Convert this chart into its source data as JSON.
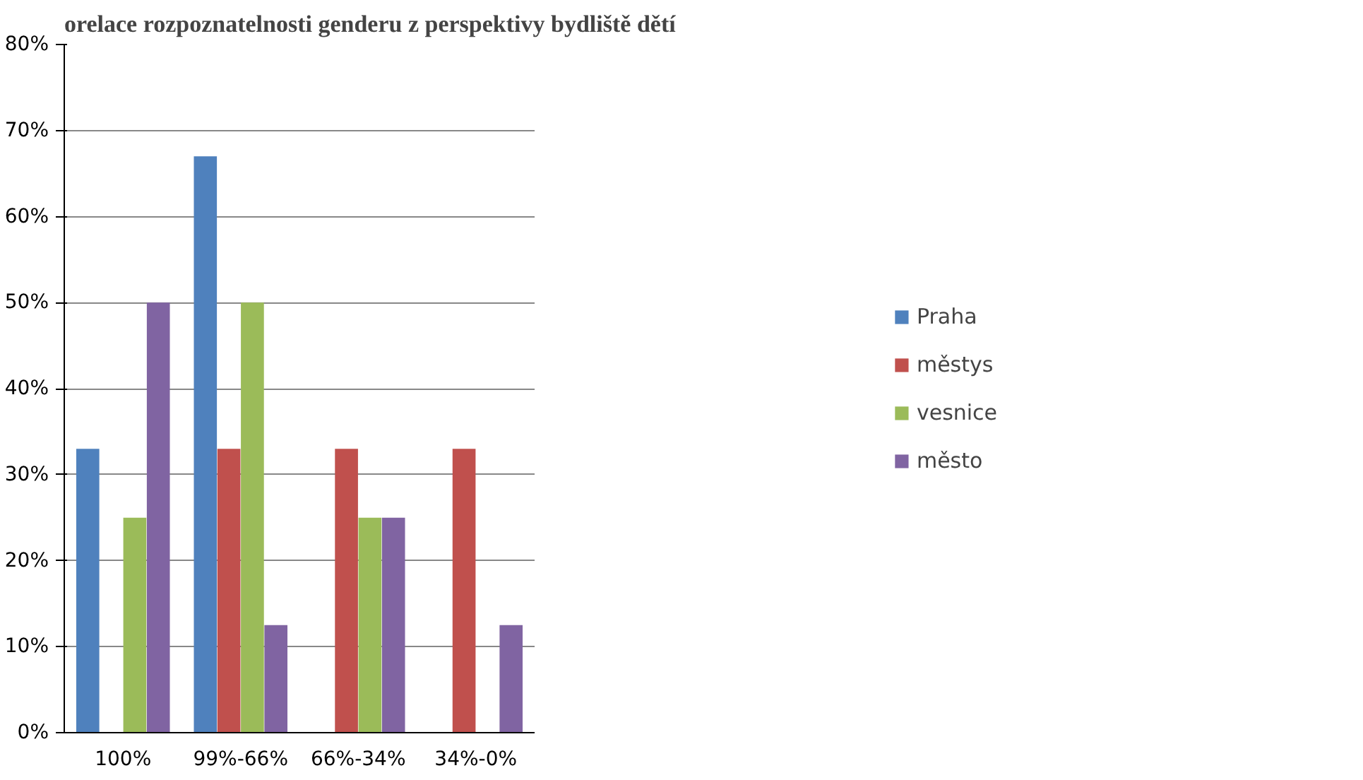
{
  "chart_data": {
    "type": "bar",
    "title": "orelace rozpoznatelnosti genderu z perspektivy bydliště dětí",
    "categories": [
      "100%",
      "99%-66%",
      "66%-34%",
      "34%-0%"
    ],
    "series": [
      {
        "name": "Praha",
        "color": "#4f81bd",
        "values": [
          33,
          67,
          0,
          0
        ]
      },
      {
        "name": "městys",
        "color": "#c0504d",
        "values": [
          0,
          33,
          33,
          33
        ]
      },
      {
        "name": "vesnice",
        "color": "#9bbb59",
        "values": [
          25,
          50,
          25,
          0
        ]
      },
      {
        "name": "město",
        "color": "#8064a2",
        "values": [
          50,
          12.5,
          25,
          12.5
        ]
      }
    ],
    "ylim": [
      0,
      80
    ],
    "yticks": [
      {
        "value": 0,
        "label": "0%"
      },
      {
        "value": 10,
        "label": "10%"
      },
      {
        "value": 20,
        "label": "20%"
      },
      {
        "value": 30,
        "label": "30%"
      },
      {
        "value": 40,
        "label": "40%"
      },
      {
        "value": 50,
        "label": "50%"
      },
      {
        "value": 60,
        "label": "60%"
      },
      {
        "value": 70,
        "label": "70%"
      },
      {
        "value": 80,
        "label": "80%"
      }
    ],
    "grid": "y",
    "legend": "right"
  }
}
